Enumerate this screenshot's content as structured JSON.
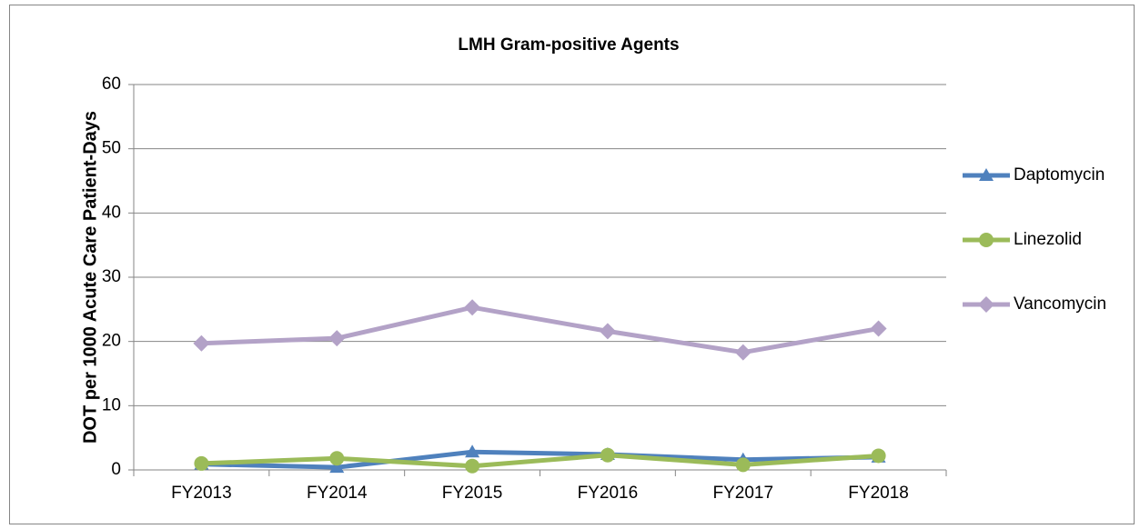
{
  "chart_data": {
    "type": "line",
    "title": "LMH Gram-positive Agents",
    "y_label": "DOT per 1000 Acute Care Patient-Days",
    "categories": [
      "FY2013",
      "FY2014",
      "FY2015",
      "FY2016",
      "FY2017",
      "FY2018"
    ],
    "series": [
      {
        "name": "Daptomycin",
        "color": "#4f81bd",
        "marker": "triangle",
        "values": [
          0.9,
          0.4,
          2.8,
          2.4,
          1.6,
          2.0
        ]
      },
      {
        "name": "Linezolid",
        "color": "#9bbb59",
        "marker": "circle",
        "values": [
          1.0,
          1.8,
          0.6,
          2.3,
          0.8,
          2.2
        ]
      },
      {
        "name": "Vancomycin",
        "color": "#b3a2c7",
        "marker": "diamond",
        "values": [
          19.7,
          20.5,
          25.3,
          21.6,
          18.3,
          22.0
        ]
      }
    ],
    "ylim": [
      0,
      60
    ],
    "yticks": [
      0,
      10,
      20,
      30,
      40,
      50,
      60
    ],
    "grid": true,
    "legend": "right"
  }
}
